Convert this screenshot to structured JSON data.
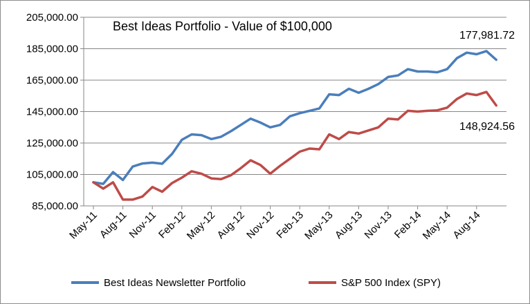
{
  "chart_data": {
    "type": "line",
    "title": "Best Ideas Portfolio - Value of $100,000",
    "xlabel": "",
    "ylabel": "",
    "ylim": [
      85000,
      205000
    ],
    "yticks": [
      "85,000.00",
      "105,000.00",
      "125,000.00",
      "145,000.00",
      "165,000.00",
      "185,000.00",
      "205,000.00"
    ],
    "ytick_values": [
      85000,
      105000,
      125000,
      145000,
      165000,
      185000,
      205000
    ],
    "grid": "horizontal",
    "legend_position": "bottom",
    "x_start": "2011-05",
    "x_tick_labels": [
      "May-11",
      "Aug-11",
      "Nov-11",
      "Feb-12",
      "May-12",
      "Aug-12",
      "Nov-12",
      "Feb-13",
      "May-13",
      "Aug-13",
      "Nov-13",
      "Feb-14",
      "May-14",
      "Aug-14"
    ],
    "series": [
      {
        "name": "Best Ideas Newsletter Portfolio",
        "color": "#4a7ebb",
        "values": [
          100000,
          99000,
          106500,
          101500,
          110000,
          112000,
          112500,
          111800,
          118000,
          127000,
          130500,
          130000,
          127500,
          129000,
          132500,
          136500,
          140500,
          138000,
          135000,
          136500,
          142000,
          144000,
          145500,
          147000,
          156000,
          155500,
          159500,
          157000,
          159500,
          162500,
          167000,
          168000,
          172000,
          170500,
          170500,
          170000,
          172000,
          179000,
          182500,
          181500,
          183500,
          177981.72
        ]
      },
      {
        "name": "S&P 500 Index (SPY)",
        "color": "#be4b48",
        "values": [
          100000,
          96000,
          100000,
          89000,
          89000,
          91000,
          97000,
          94000,
          99500,
          103000,
          107000,
          105500,
          102500,
          102000,
          104500,
          109000,
          114000,
          111000,
          105500,
          110500,
          115000,
          119500,
          121500,
          121000,
          130500,
          127500,
          132000,
          131000,
          133000,
          135000,
          140500,
          140000,
          145500,
          145000,
          145500,
          145800,
          147500,
          153000,
          156500,
          155500,
          157500,
          148924.56
        ]
      }
    ],
    "annotations": [
      "177,981.72",
      "148,924.56"
    ]
  }
}
